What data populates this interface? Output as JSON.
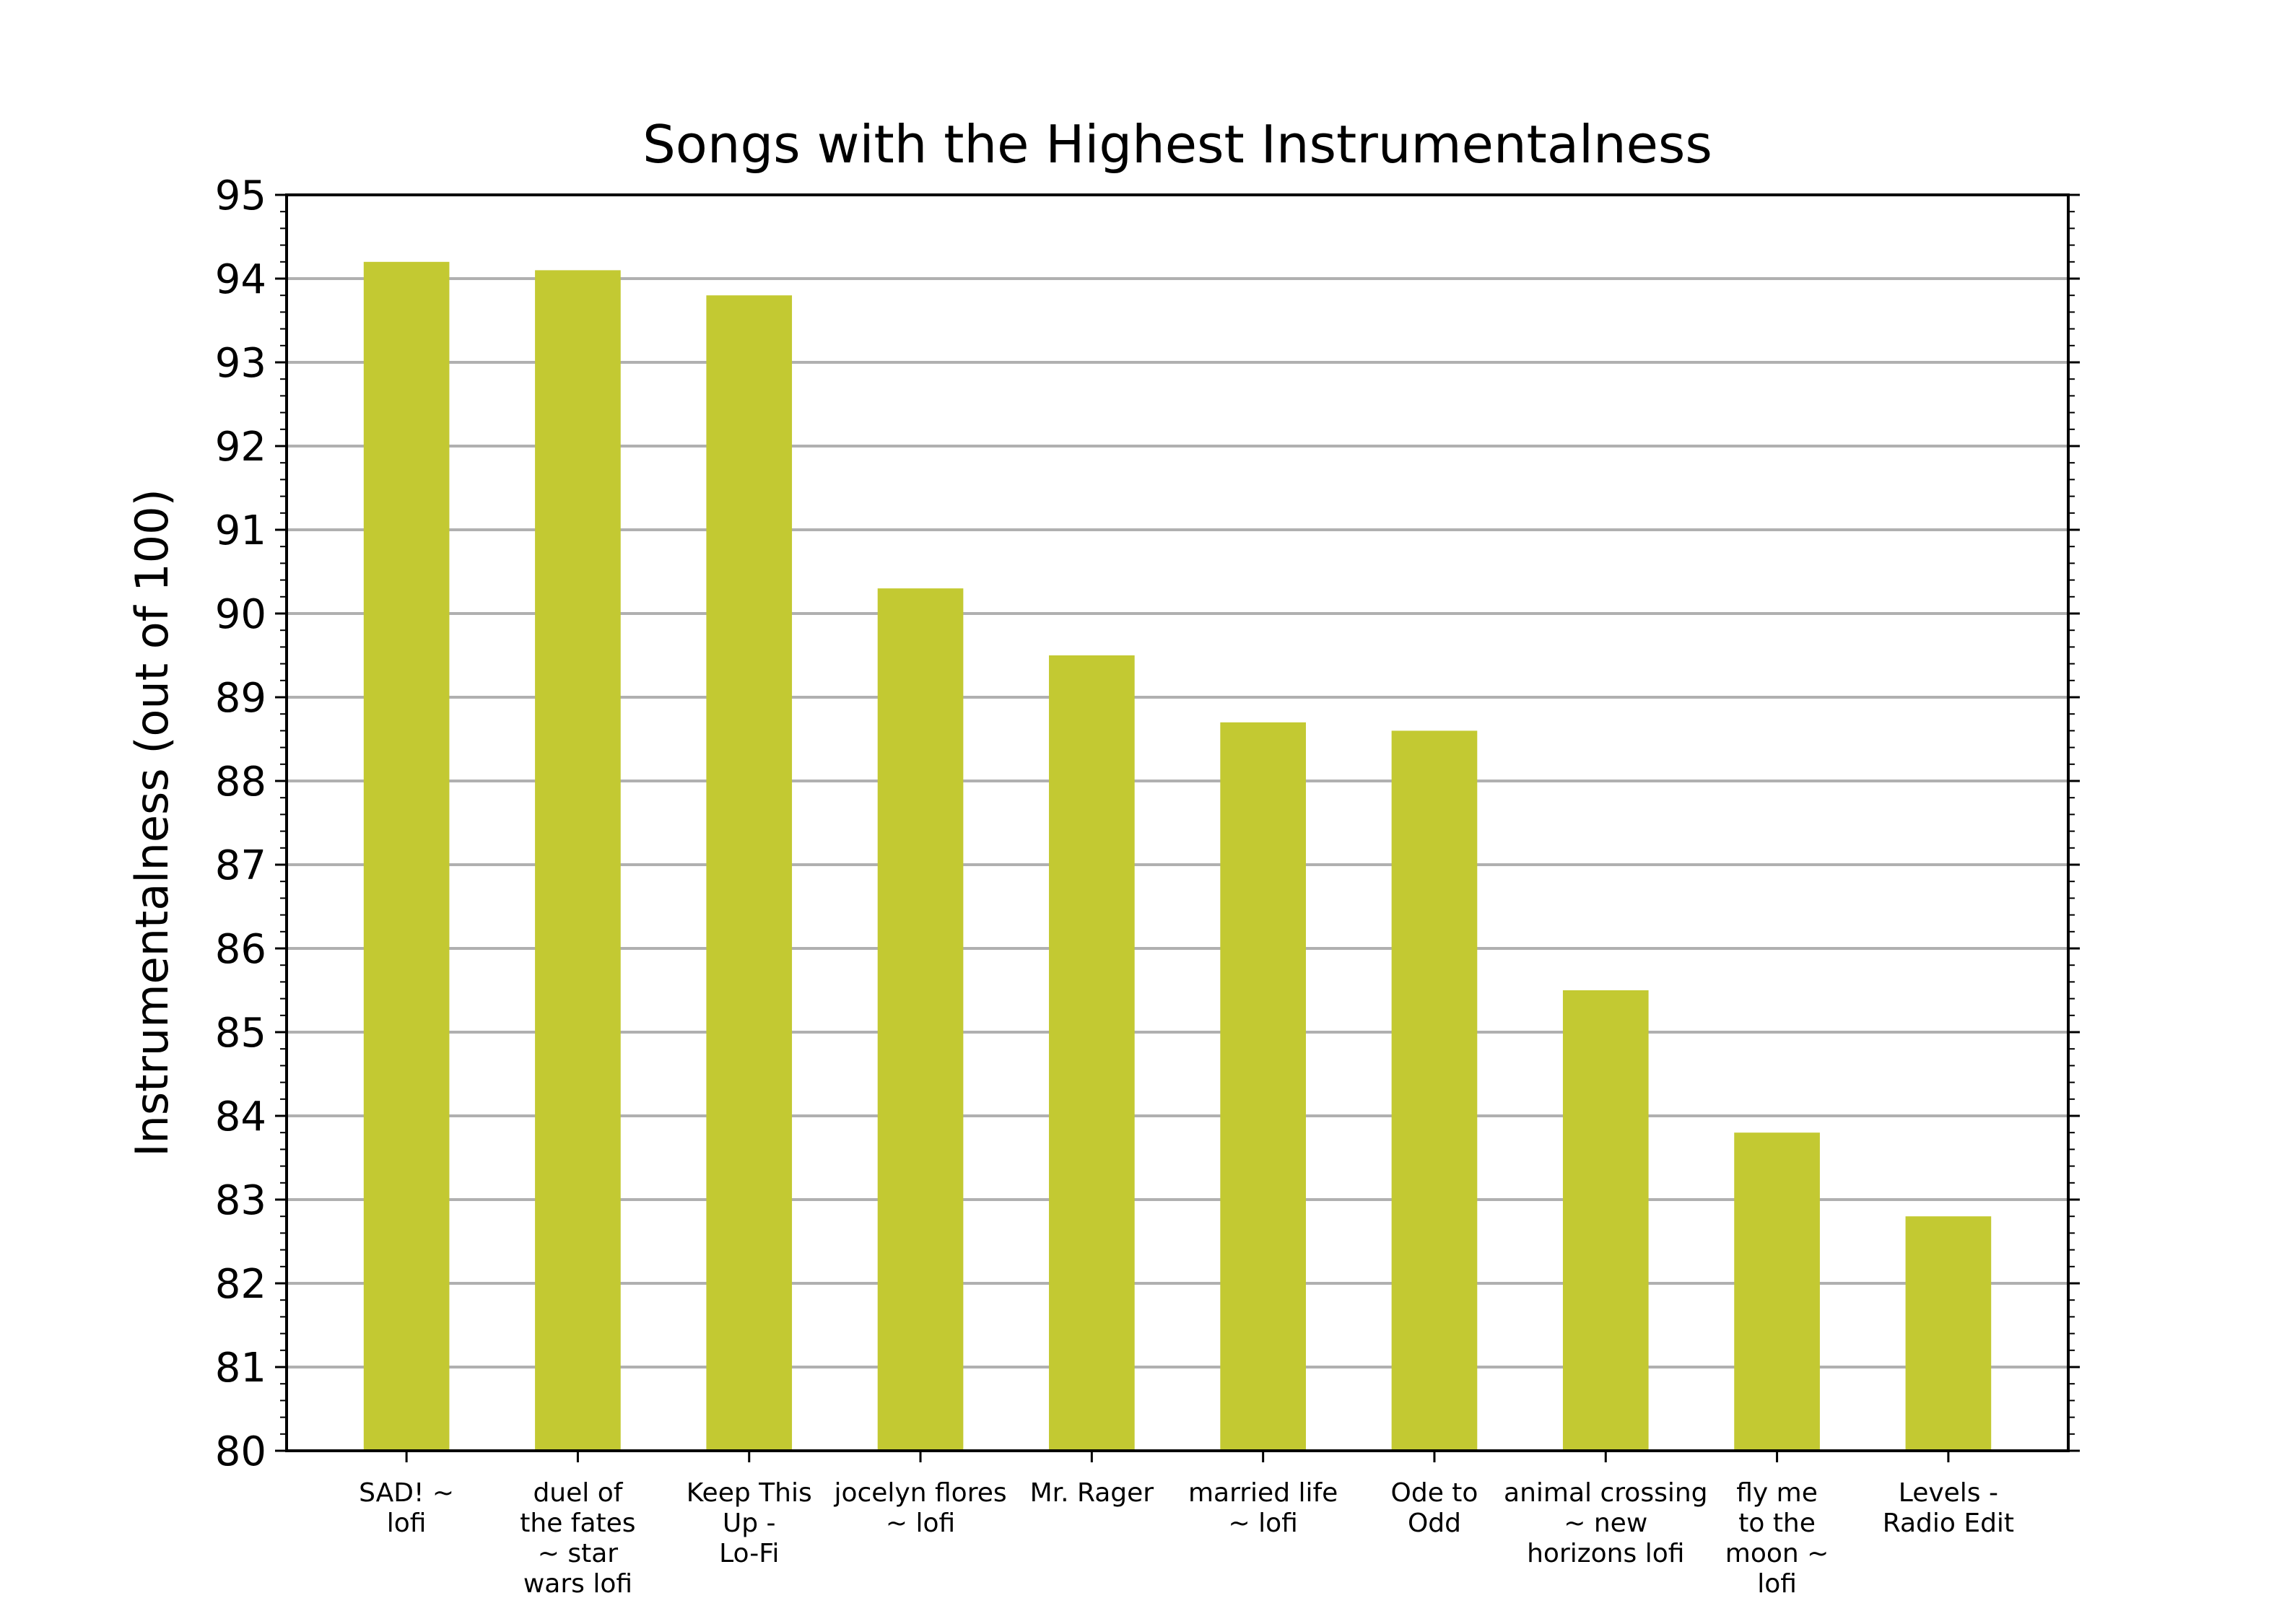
{
  "chart_data": {
    "type": "bar",
    "title": "Songs with the Highest Instrumentalness",
    "xlabel": "",
    "ylabel": "Instrumentalness (out of 100)",
    "ylim": [
      80,
      95
    ],
    "yticks": [
      "80",
      "81",
      "82",
      "83",
      "84",
      "85",
      "86",
      "87",
      "88",
      "89",
      "90",
      "91",
      "92",
      "93",
      "94",
      "95"
    ],
    "grid": "horizontal",
    "bar_color": "#c3c932",
    "categories": [
      [
        "SAD! ~",
        "lofi"
      ],
      [
        "duel of",
        "the fates",
        "~ star",
        "wars lofi"
      ],
      [
        "Keep This",
        "Up -",
        "Lo-Fi"
      ],
      [
        "jocelyn flores",
        "~ lofi"
      ],
      [
        "Mr. Rager"
      ],
      [
        "married life",
        "~ lofi"
      ],
      [
        "Ode to",
        "Odd"
      ],
      [
        "animal crossing",
        "~ new",
        "horizons lofi"
      ],
      [
        "fly me",
        "to the",
        "moon ~",
        "lofi"
      ],
      [
        "Levels -",
        "Radio Edit"
      ]
    ],
    "values": [
      94.2,
      94.1,
      93.8,
      90.3,
      89.5,
      88.7,
      88.6,
      85.5,
      83.8,
      82.8
    ]
  }
}
